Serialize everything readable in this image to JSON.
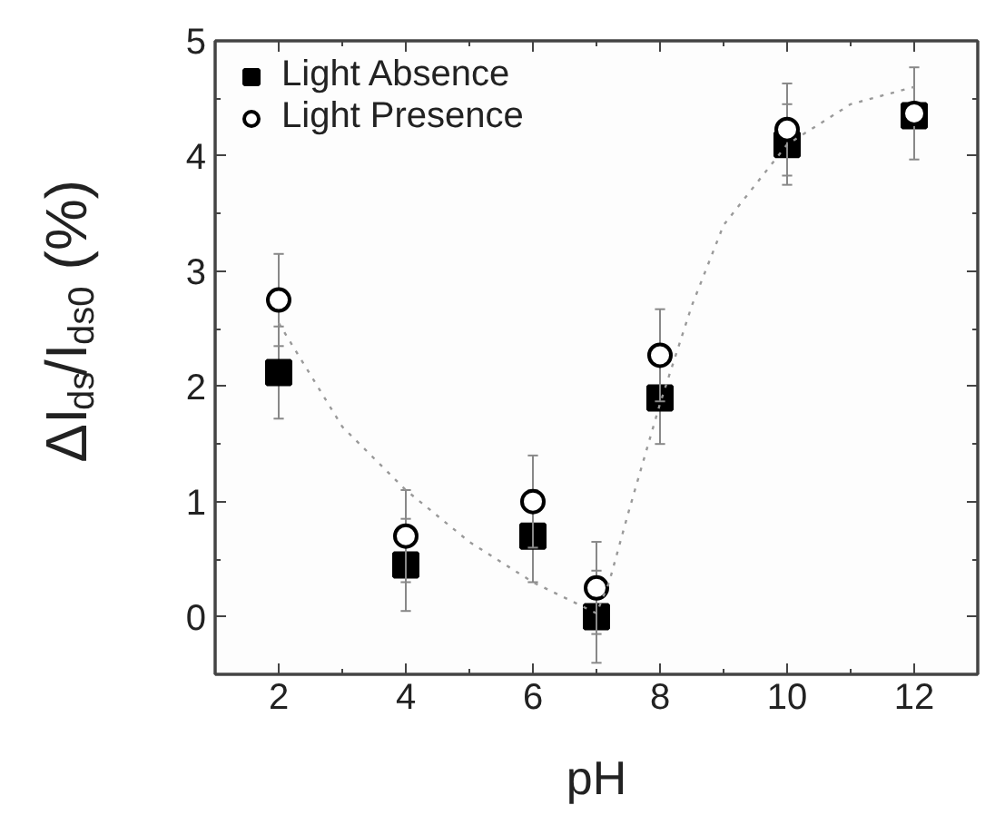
{
  "chart_data": {
    "type": "scatter",
    "xlabel": "pH",
    "ylabel": "ΔI$_{ds}$/I$_{ds0}$ (%)",
    "xlim": [
      1,
      13
    ],
    "ylim": [
      -0.5,
      5
    ],
    "xticks": [
      2,
      4,
      6,
      8,
      10,
      12
    ],
    "yticks": [
      0,
      1,
      2,
      3,
      4,
      5
    ],
    "grid": false,
    "legend": "top left",
    "series": [
      {
        "name": "Light Absence",
        "color": "#000000",
        "marker": "square",
        "x": [
          2,
          4,
          6,
          7,
          8,
          10,
          12
        ],
        "values": [
          2.12,
          0.45,
          0.7,
          0.0,
          1.9,
          4.1,
          4.35
        ],
        "errors": [
          0.4,
          0.4,
          0.4,
          0.4,
          0.4,
          0.35,
          null
        ]
      },
      {
        "name": "Light Presence",
        "color": "#000000",
        "marker": "circle",
        "x": [
          2,
          4,
          6,
          7,
          8,
          10,
          12
        ],
        "values": [
          2.75,
          0.7,
          1.0,
          0.25,
          2.27,
          4.23,
          4.37
        ],
        "errors": [
          0.4,
          0.4,
          0.4,
          0.4,
          0.4,
          0.4,
          0.4
        ]
      },
      {
        "type": "line",
        "color": "#999999",
        "line_style": "dotted",
        "x": [
          2,
          3,
          4,
          5,
          6,
          7,
          7.2,
          7.5,
          8,
          8.5,
          9,
          10,
          11,
          12
        ],
        "values": [
          2.55,
          1.65,
          1.1,
          0.65,
          0.3,
          0.03,
          0.3,
          0.9,
          1.85,
          2.7,
          3.4,
          4.1,
          4.45,
          4.6
        ]
      }
    ]
  }
}
